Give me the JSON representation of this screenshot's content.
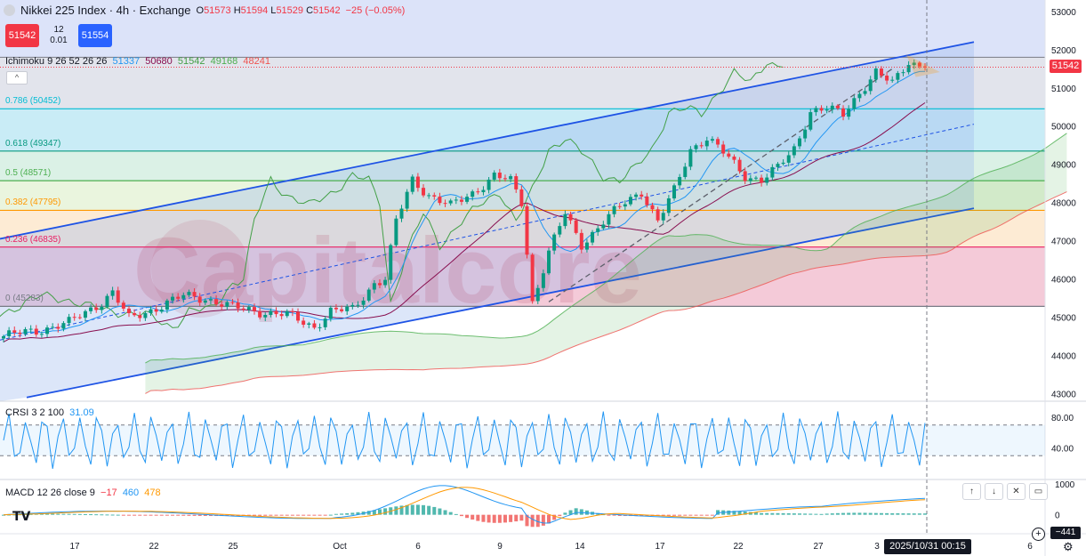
{
  "header": {
    "symbol_title": "Nikkei 225 Index · 4h · Exchange",
    "open": "51573",
    "high": "51594",
    "low": "51529",
    "close": "51542",
    "change": "−25 (−0.05%)"
  },
  "trade": {
    "sell_label": "51542",
    "spread_top": "12",
    "spread_bottom": "0.01",
    "buy_label": "51554"
  },
  "indicators": {
    "ichimoku": {
      "label": "Ichimoku 9 26 52 26 26",
      "v1": "51337",
      "v2": "50680",
      "v3": "51542",
      "v4": "49168",
      "v5": "48241"
    },
    "crsi": {
      "label": "CRSI 3 2 100",
      "value": "31.09"
    },
    "macd": {
      "label": "MACD 12 26 close 9",
      "hist": "−17",
      "macd": "460",
      "signal": "478"
    }
  },
  "badges": {
    "last_price": "51542",
    "macd_value": "−441",
    "cursor_date": "2025/10/31   00:15"
  },
  "watermark": "Capitalcore",
  "colors": {
    "up": "#089981",
    "down": "#f23645",
    "channel": "#1e53e5",
    "tenkan": "#2196f3",
    "kijun": "#880e4f",
    "chikou": "#43a047",
    "span_a": "#4caf50",
    "span_b": "#ef5350"
  },
  "chart_data": [
    {
      "type": "candlestick",
      "title": "Nikkei 225 Index · 4h · Exchange",
      "y_ticks": [
        "53000",
        "52000",
        "51000",
        "50000",
        "49000",
        "48000",
        "47000",
        "46000",
        "45000",
        "44000",
        "43000"
      ],
      "ylim": [
        42800,
        53300
      ],
      "x_ticks": [
        "17",
        "22",
        "25",
        "Oct",
        "6",
        "9",
        "14",
        "17",
        "22",
        "27",
        "3",
        "6"
      ],
      "fibonacci": [
        {
          "label": "0.786 (50452)",
          "value": 50452,
          "color": "#00bcd4"
        },
        {
          "label": "0.618 (49347)",
          "value": 49347,
          "color": "#089981"
        },
        {
          "label": "0.5 (48571)",
          "value": 48571,
          "color": "#4caf50"
        },
        {
          "label": "0.382 (47795)",
          "value": 47795,
          "color": "#ff9800"
        },
        {
          "label": "0.236 (46835)",
          "value": 46835,
          "color": "#e91e63"
        },
        {
          "label": "0 (45283)",
          "value": 45283,
          "color": "#787b86"
        }
      ],
      "channel": {
        "upper": [
          [
            0,
            47050
          ],
          [
            1095,
            52200
          ]
        ],
        "lower": [
          [
            30,
            42900
          ],
          [
            1095,
            47850
          ]
        ],
        "mid": [
          [
            0,
            44400
          ],
          [
            1095,
            50050
          ]
        ]
      },
      "close_series": [
        {
          "i": 0,
          "c": 44500
        },
        {
          "i": 6,
          "c": 44650
        },
        {
          "i": 12,
          "c": 44850
        },
        {
          "i": 18,
          "c": 45400
        },
        {
          "i": 20,
          "c": 45650
        },
        {
          "i": 23,
          "c": 44950
        },
        {
          "i": 28,
          "c": 45250
        },
        {
          "i": 33,
          "c": 45550
        },
        {
          "i": 37,
          "c": 45500
        },
        {
          "i": 42,
          "c": 45250
        },
        {
          "i": 47,
          "c": 45150
        },
        {
          "i": 52,
          "c": 45050
        },
        {
          "i": 57,
          "c": 44750
        },
        {
          "i": 60,
          "c": 45150
        },
        {
          "i": 64,
          "c": 45200
        },
        {
          "i": 68,
          "c": 45900
        },
        {
          "i": 70,
          "c": 46000
        },
        {
          "i": 72,
          "c": 47500
        },
        {
          "i": 75,
          "c": 48600
        },
        {
          "i": 78,
          "c": 48200
        },
        {
          "i": 82,
          "c": 47900
        },
        {
          "i": 86,
          "c": 48250
        },
        {
          "i": 90,
          "c": 48700
        },
        {
          "i": 93,
          "c": 48550
        },
        {
          "i": 95,
          "c": 48000
        },
        {
          "i": 97,
          "c": 45400
        },
        {
          "i": 100,
          "c": 46700
        },
        {
          "i": 103,
          "c": 47700
        },
        {
          "i": 106,
          "c": 46900
        },
        {
          "i": 110,
          "c": 47500
        },
        {
          "i": 114,
          "c": 48000
        },
        {
          "i": 117,
          "c": 48300
        },
        {
          "i": 120,
          "c": 47500
        },
        {
          "i": 123,
          "c": 48300
        },
        {
          "i": 126,
          "c": 49400
        },
        {
          "i": 129,
          "c": 49700
        },
        {
          "i": 132,
          "c": 49300
        },
        {
          "i": 136,
          "c": 48700
        },
        {
          "i": 139,
          "c": 48600
        },
        {
          "i": 142,
          "c": 48900
        },
        {
          "i": 145,
          "c": 49400
        },
        {
          "i": 148,
          "c": 50400
        },
        {
          "i": 151,
          "c": 50450
        },
        {
          "i": 154,
          "c": 50300
        },
        {
          "i": 157,
          "c": 50900
        },
        {
          "i": 160,
          "c": 51400
        },
        {
          "i": 163,
          "c": 51100
        },
        {
          "i": 166,
          "c": 51700
        },
        {
          "i": 169,
          "c": 51542
        }
      ]
    },
    {
      "type": "line",
      "title": "CRSI 3 2 100",
      "y_ticks": [
        "80.00",
        "40.00"
      ],
      "ylim": [
        0,
        100
      ],
      "bands": [
        70,
        30
      ]
    },
    {
      "type": "line",
      "title": "MACD 12 26 close 9",
      "y_ticks": [
        "1000",
        "0"
      ],
      "ylim": [
        -500,
        1000
      ]
    }
  ]
}
